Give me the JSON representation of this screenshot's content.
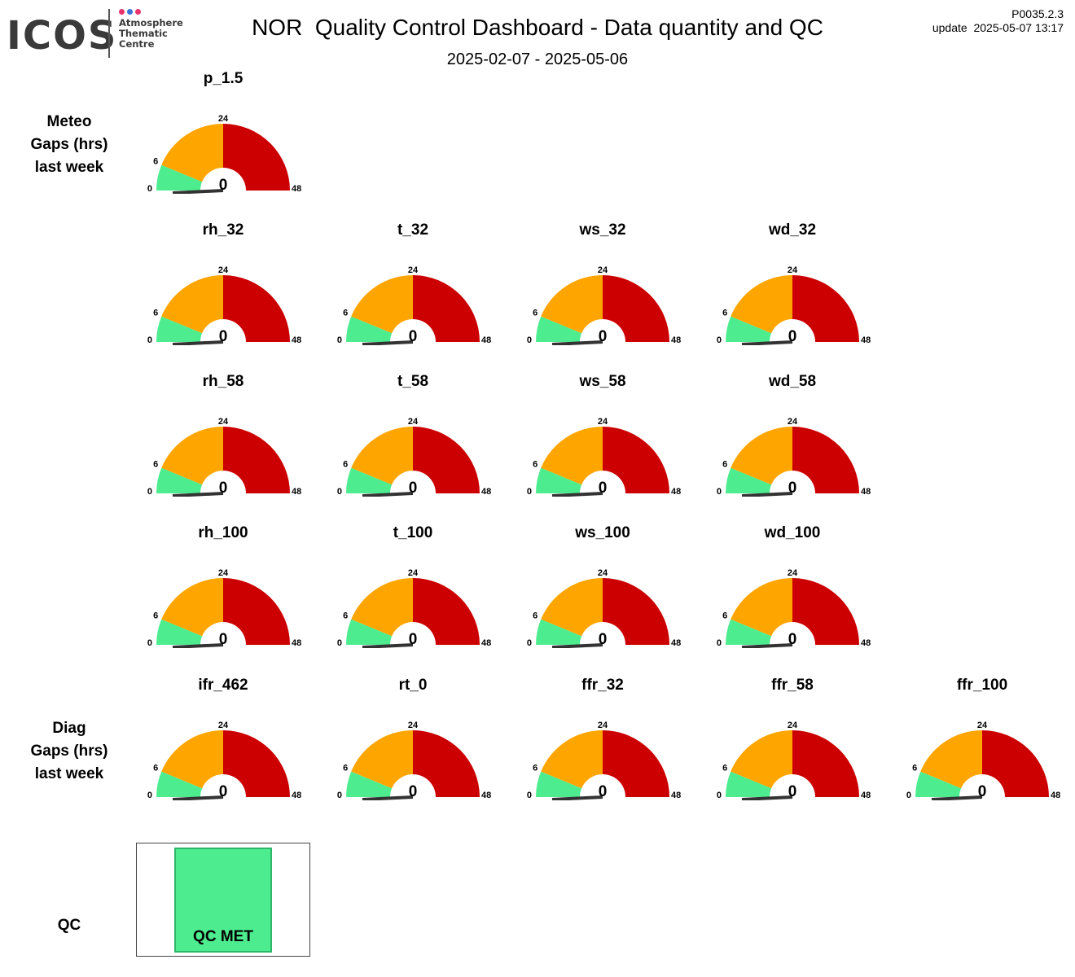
{
  "header": {
    "logo_text": "ICOS",
    "logo_sub": [
      "Atmosphere",
      "Thematic",
      "Centre"
    ],
    "title": "NOR  Quality Control Dashboard - Data quantity and QC",
    "date_range": "2025-02-07 - 2025-05-06",
    "version": "P0035.2.3",
    "update": "update  2025-05-07 13:17"
  },
  "colors": {
    "good": "#4ded8f",
    "warn": "#ffa500",
    "bad": "#cc0000",
    "needle": "#333333",
    "logo_dots": [
      "#e8336d",
      "#3b73d6",
      "#e8336d"
    ]
  },
  "gauge_scale": {
    "min": 0,
    "warn": 6,
    "mid": 24,
    "max": 48
  },
  "rows": [
    {
      "label": [
        "Meteo",
        "Gaps (hrs)",
        "last week"
      ],
      "gauges": [
        {
          "name": "p_1.5",
          "value": 0
        }
      ]
    },
    {
      "label": [],
      "gauges": [
        {
          "name": "rh_32",
          "value": 0
        },
        {
          "name": "t_32",
          "value": 0
        },
        {
          "name": "ws_32",
          "value": 0
        },
        {
          "name": "wd_32",
          "value": 0
        }
      ]
    },
    {
      "label": [],
      "gauges": [
        {
          "name": "rh_58",
          "value": 0
        },
        {
          "name": "t_58",
          "value": 0
        },
        {
          "name": "ws_58",
          "value": 0
        },
        {
          "name": "wd_58",
          "value": 0
        }
      ]
    },
    {
      "label": [],
      "gauges": [
        {
          "name": "rh_100",
          "value": 0
        },
        {
          "name": "t_100",
          "value": 0
        },
        {
          "name": "ws_100",
          "value": 0
        },
        {
          "name": "wd_100",
          "value": 0
        }
      ]
    },
    {
      "label": [
        "Diag",
        "Gaps (hrs)",
        "last week"
      ],
      "gauges": [
        {
          "name": "ifr_462",
          "value": 0
        },
        {
          "name": "rt_0",
          "value": 0
        },
        {
          "name": "ffr_32",
          "value": 0
        },
        {
          "name": "ffr_58",
          "value": 0
        },
        {
          "name": "ffr_100",
          "value": 0
        }
      ]
    }
  ],
  "qc": {
    "label": "QC",
    "status": "QC MET"
  }
}
